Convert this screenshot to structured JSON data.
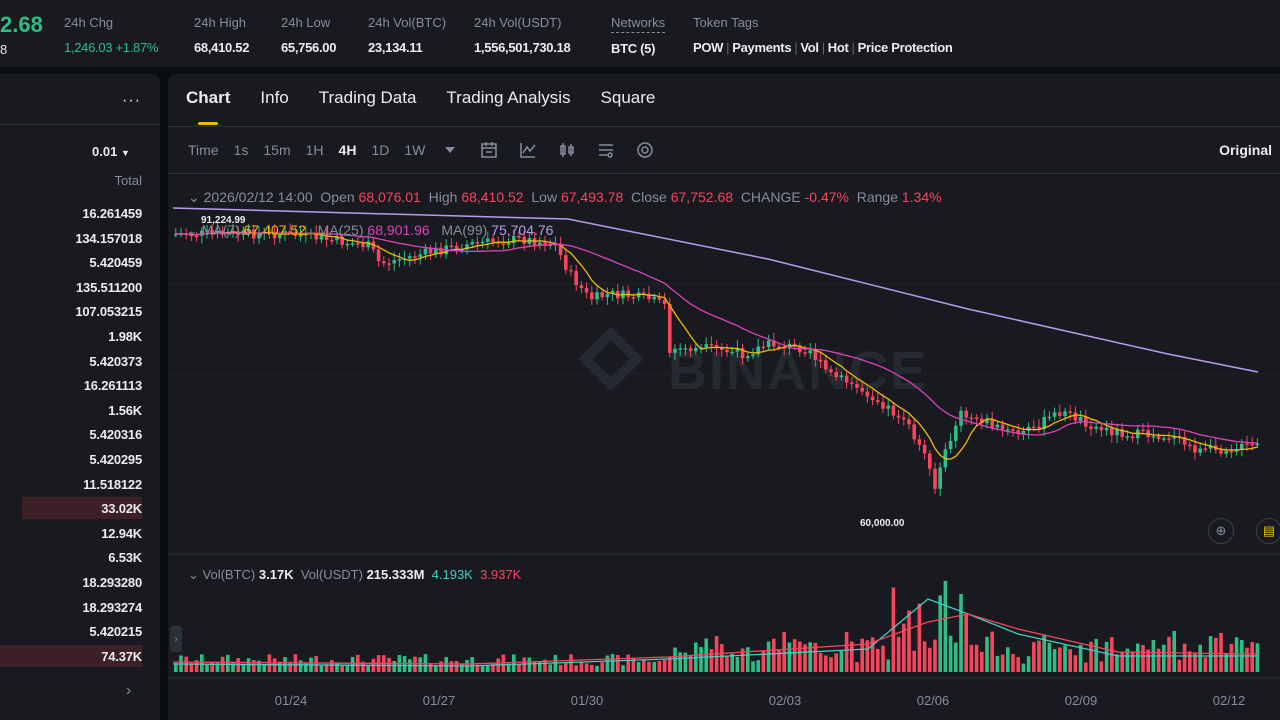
{
  "ticker": {
    "price": "2.68",
    "price_sub": "8",
    "stats": [
      {
        "label": "24h Chg",
        "value": "1,246.03 +1.87%"
      },
      {
        "label": "24h High",
        "value": "68,410.52"
      },
      {
        "label": "24h Low",
        "value": "65,756.00"
      },
      {
        "label": "24h Vol(BTC)",
        "value": "23,134.11"
      },
      {
        "label": "24h Vol(USDT)",
        "value": "1,556,501,730.18"
      },
      {
        "label": "Networks",
        "value": "BTC (5)"
      }
    ],
    "token_tags_label": "Token Tags",
    "token_tags": [
      "POW",
      "Payments",
      "Vol",
      "Hot",
      "Price Protection"
    ]
  },
  "orderbook": {
    "more_icon": "more-dots-icon",
    "precision": "0.01",
    "total_label": "Total",
    "rows": [
      {
        "total": "16.261459",
        "depth": 0
      },
      {
        "total": "134.157018",
        "depth": 0
      },
      {
        "total": "5.420459",
        "depth": 0
      },
      {
        "total": "135.511200",
        "depth": 0
      },
      {
        "total": "107.053215",
        "depth": 0
      },
      {
        "total": "1.98K",
        "depth": 0
      },
      {
        "total": "5.420373",
        "depth": 0
      },
      {
        "total": "16.261113",
        "depth": 0
      },
      {
        "total": "1.56K",
        "depth": 0
      },
      {
        "total": "5.420316",
        "depth": 0
      },
      {
        "total": "5.420295",
        "depth": 0
      },
      {
        "total": "11.518122",
        "depth": 0
      },
      {
        "total": "33.02K",
        "depth": 0.75
      },
      {
        "total": "12.94K",
        "depth": 0
      },
      {
        "total": "6.53K",
        "depth": 0
      },
      {
        "total": "18.293280",
        "depth": 0
      },
      {
        "total": "18.293274",
        "depth": 0
      },
      {
        "total": "5.420215",
        "depth": 0
      },
      {
        "total": "74.37K",
        "depth": 1.0
      }
    ]
  },
  "tabs": [
    "Chart",
    "Info",
    "Trading Data",
    "Trading Analysis",
    "Square"
  ],
  "active_tab": "Chart",
  "toolbar": {
    "timeframes": [
      "Time",
      "1s",
      "15m",
      "1H",
      "4H",
      "1D",
      "1W"
    ],
    "active_timeframe": "4H",
    "icons": [
      "dropdown-caret-icon",
      "calendar-icon",
      "indicator-icon",
      "candle-style-icon",
      "settings-sliders-icon",
      "gear-icon"
    ],
    "original_label": "Original"
  },
  "ohlc": {
    "date": "2026/02/12 14:00",
    "open_label": "Open",
    "open": "68,076.01",
    "high_label": "High",
    "high": "68,410.52",
    "low_label": "Low",
    "low": "67,493.78",
    "close_label": "Close",
    "close": "67,752.68",
    "change_label": "CHANGE",
    "change": "-0.47%",
    "range_label": "Range",
    "range": "1.34%"
  },
  "ma": {
    "ma7_label": "MA(7)",
    "ma7": "67,407.52",
    "ma25_label": "MA(25)",
    "ma25": "68,901.96",
    "ma99_label": "MA(99)",
    "ma99": "75,704.76"
  },
  "annotations": {
    "high_marker": "91,224.99",
    "low_marker": "60,000.00"
  },
  "volume": {
    "vol_btc_label": "Vol(BTC)",
    "vol_btc": "3.17K",
    "vol_usdt_label": "Vol(USDT)",
    "vol_usdt": "215.333M",
    "ma_green": "4.193K",
    "ma_red": "3.937K"
  },
  "watermark": "BINANCE",
  "x_axis": [
    "01/24",
    "01/27",
    "01/30",
    "02/03",
    "02/06",
    "02/09",
    "02/12"
  ],
  "colors": {
    "up": "#2ebd85",
    "down": "#f6465d",
    "accent": "#f0b90b",
    "ma7": "#f0b90b",
    "ma25": "#e040c0",
    "ma99": "#b79cf0"
  }
}
